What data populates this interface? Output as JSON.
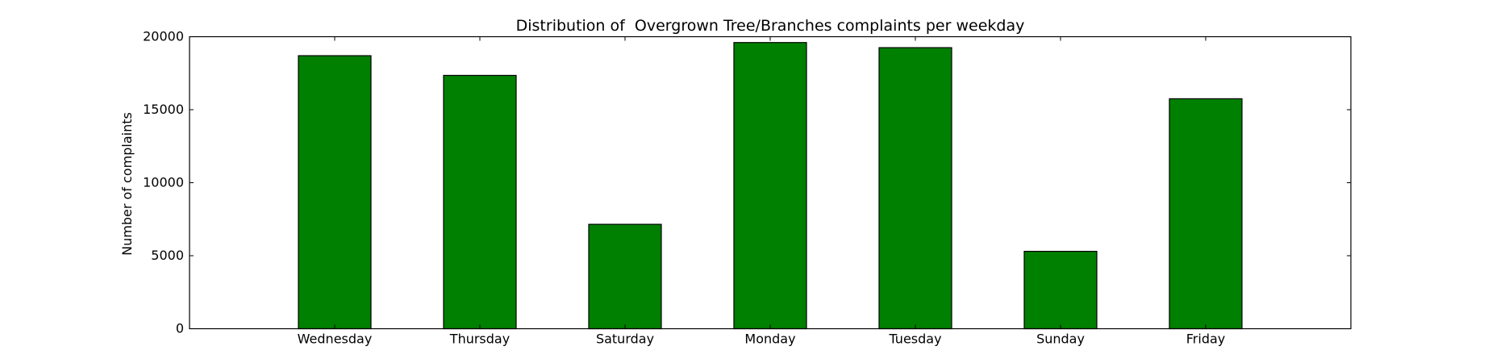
{
  "chart_data": {
    "type": "bar",
    "title": "Distribution of  Overgrown Tree/Branches complaints per weekday",
    "xlabel": "",
    "ylabel": "Number of complaints",
    "categories": [
      "Wednesday",
      "Thursday",
      "Saturday",
      "Monday",
      "Tuesday",
      "Sunday",
      "Friday"
    ],
    "values": [
      18700,
      17350,
      7150,
      19600,
      19250,
      5300,
      15750
    ],
    "ylim": [
      0,
      20000
    ],
    "yticks": [
      "0",
      "5000",
      "10000",
      "15000",
      "20000"
    ],
    "xlim": [
      -1,
      7
    ],
    "bar_color": "#008000",
    "edge_color": "#000000",
    "grid": false,
    "legend": "none"
  }
}
